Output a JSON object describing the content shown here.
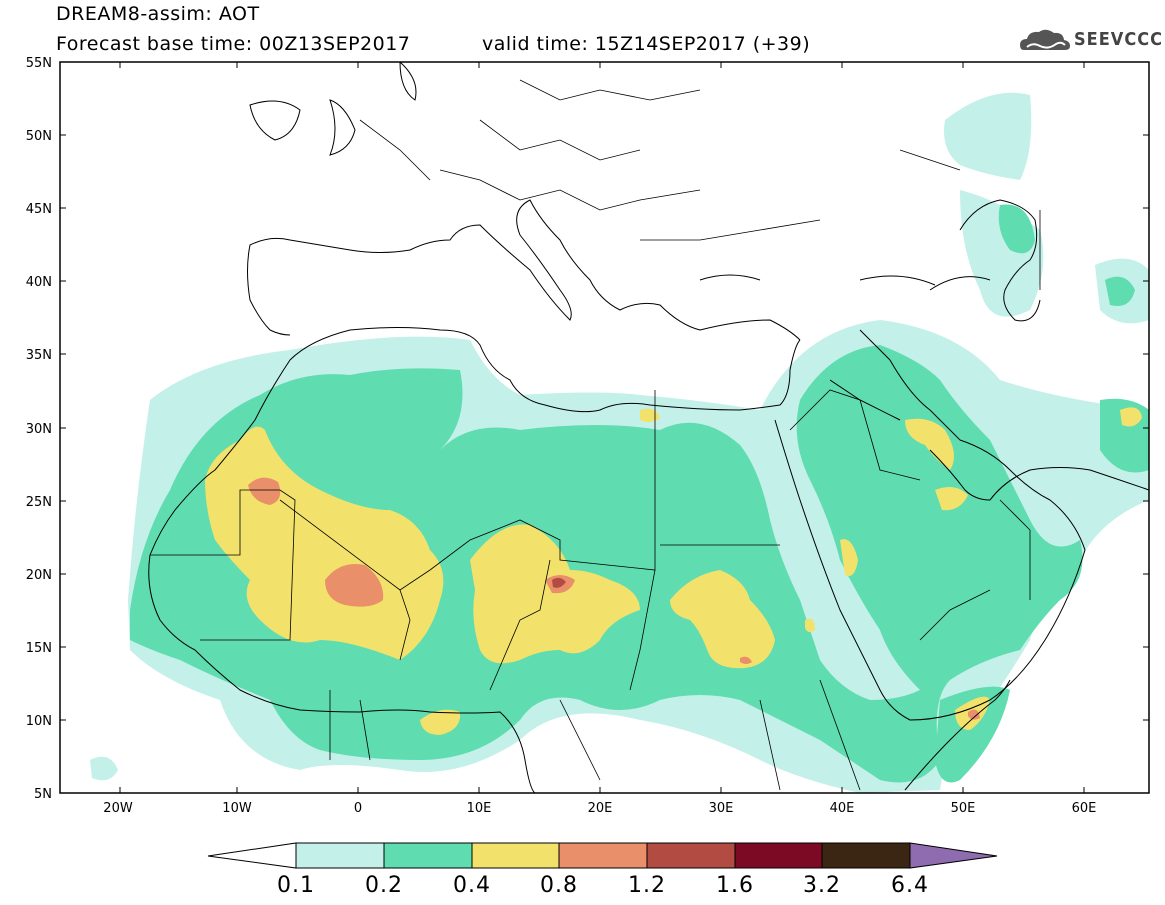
{
  "title": {
    "line1": "DREAM8-assim: AOT",
    "line2": "Forecast base time: 00Z13SEP2017",
    "valid": "valid time: 15Z14SEP2017 (+39)"
  },
  "logo": {
    "text": "SEEVCCC",
    "icon": "cloud-icon"
  },
  "axes": {
    "lat_labels": [
      "55N",
      "50N",
      "45N",
      "40N",
      "35N",
      "30N",
      "25N",
      "20N",
      "15N",
      "10N",
      "5N"
    ],
    "lon_labels": [
      "20W",
      "10W",
      "0",
      "10E",
      "20E",
      "30E",
      "40E",
      "50E",
      "60E"
    ],
    "lat_range": [
      5,
      55
    ],
    "lon_range": [
      -25,
      65
    ]
  },
  "colorbar": {
    "labels": [
      "0.1",
      "0.2",
      "0.4",
      "0.8",
      "1.2",
      "1.6",
      "3.2",
      "6.4"
    ],
    "colors": [
      "#c3f0e8",
      "#5fdcb0",
      "#f2e26c",
      "#e9906a",
      "#b24c42",
      "#7d0a24",
      "#3a2612",
      "#8f6bb0"
    ]
  }
}
